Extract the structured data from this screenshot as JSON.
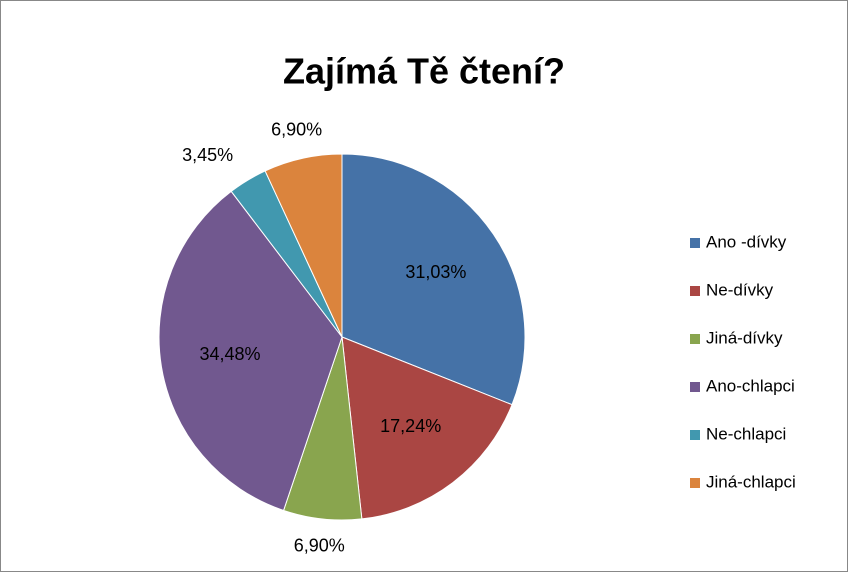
{
  "chart_data": {
    "type": "pie",
    "title": "Zajímá Tě čtení?",
    "categories": [
      "Ano -dívky",
      "Ne-dívky",
      "Jiná-dívky",
      "Ano-chlapci",
      "Ne-chlapci",
      "Jiná-chlapci"
    ],
    "values": [
      31.03,
      17.24,
      6.9,
      34.48,
      3.45,
      6.9
    ],
    "value_labels": [
      "31,03%",
      "17,24%",
      "6,90%",
      "34,48%",
      "3,45%",
      "6,90%"
    ],
    "colors": [
      "#4572a7",
      "#aa4643",
      "#89a54e",
      "#71588f",
      "#4198af",
      "#db843d"
    ],
    "legend": "right"
  }
}
